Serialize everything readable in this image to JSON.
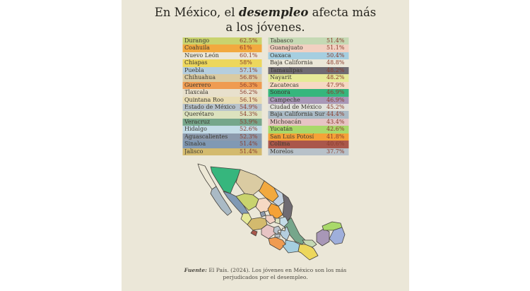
{
  "background": {
    "page": "#FFFFFF",
    "panel": "#EBE7D8"
  },
  "title": {
    "pre": "En México, el ",
    "em": "desempleo",
    "post": " afecta más",
    "line2": "a los jóvenes."
  },
  "source": {
    "label": "Fuente:",
    "rest": " El País. (2024). Los jóvenes en México son los más",
    "line2": "perjudicados por el desempleo."
  },
  "text_colors": {
    "state_name": "#3A372F",
    "value": "#8A3C2C",
    "title": "#26251F"
  },
  "table": {
    "left": [
      {
        "state": "Durango",
        "value": "62.5%",
        "color": "#C9D36E"
      },
      {
        "state": "Coahuila",
        "value": "61%",
        "color": "#F2A93F"
      },
      {
        "state": "Nuevo León",
        "value": "60.1%",
        "color": "transparent",
        "map_color": "#C3D2E2"
      },
      {
        "state": "Chiapas",
        "value": "58%",
        "color": "#EDD75C"
      },
      {
        "state": "Puebla",
        "value": "57.1%",
        "color": "#B5CEDE"
      },
      {
        "state": "Chihuahua",
        "value": "56.8%",
        "color": "#DACBA2"
      },
      {
        "state": "Guerrero",
        "value": "56.3%",
        "color": "#EF9B51"
      },
      {
        "state": "Tlaxcala",
        "value": "56.2%",
        "color": "#E8E0CC"
      },
      {
        "state": "Quintana Roo",
        "value": "56.1%",
        "color": "#E9DDB4",
        "map_color": "#9FAFDB"
      },
      {
        "state": "Estado de México",
        "value": "54.9%",
        "color": "#B8C3CC"
      },
      {
        "state": "Querétaro",
        "value": "54.3%",
        "color": "#DCE2BE"
      },
      {
        "state": "Veracruz",
        "value": "53.9%",
        "color": "#76A68B"
      },
      {
        "state": "Hidalgo",
        "value": "52.6%",
        "color": "#C4DCE7"
      },
      {
        "state": "Aguascalientes",
        "value": "52.3%",
        "color": "#8C9AAD"
      },
      {
        "state": "Sinaloa",
        "value": "51.4%",
        "color": "#8099B4"
      },
      {
        "state": "Jalisco",
        "value": "51.4%",
        "color": "#D3BA6E"
      }
    ],
    "right": [
      {
        "state": "Tabasco",
        "value": "51.4%",
        "color": "#C5D9B4"
      },
      {
        "state": "Guanajuato",
        "value": "51.1%",
        "color": "#F2D0C1"
      },
      {
        "state": "Oaxaca",
        "value": "50.4%",
        "color": "#A5CEE0"
      },
      {
        "state": "Baja California",
        "value": "48.8%",
        "color": "transparent",
        "map_color": "#EDE8D6"
      },
      {
        "state": "Tamaulipas",
        "value": "48.2%",
        "color": "#6F6B72"
      },
      {
        "state": "Nayarit",
        "value": "48.2%",
        "color": "#E6EA98"
      },
      {
        "state": "Zacatecas",
        "value": "47.9%",
        "color": "#F6D9C3"
      },
      {
        "state": "Sonora",
        "value": "46.9%",
        "color": "#36B67D"
      },
      {
        "state": "Campeche",
        "value": "46.9%",
        "color": "#A897B7"
      },
      {
        "state": "Ciudad de México",
        "value": "45.2%",
        "color": "#E1E1DB"
      },
      {
        "state": "Baja California Sur",
        "value": "44.4%",
        "color": "#AABAC5"
      },
      {
        "state": "Michoacán",
        "value": "43.4%",
        "color": "#E7C4C4"
      },
      {
        "state": "Yucatán",
        "value": "42.6%",
        "color": "#A9D96A"
      },
      {
        "state": "San Luis Potosí",
        "value": "41.8%",
        "color": "#F5A237"
      },
      {
        "state": "Colima",
        "value": "40.6%",
        "color": "#AA574B"
      },
      {
        "state": "Morelos",
        "value": "37.7%",
        "color": "#B7C1C9"
      }
    ]
  },
  "chart_data": {
    "type": "table",
    "title": "En México, el desempleo afecta más a los jóvenes.",
    "unit": "%",
    "note": "choropleth map of Mexico colored per state, matching table row colors",
    "source": "Fuente: El País. (2024). Los jóvenes en México son los más perjudicados por el desempleo.",
    "categories": [
      "Durango",
      "Coahuila",
      "Nuevo León",
      "Chiapas",
      "Puebla",
      "Chihuahua",
      "Guerrero",
      "Tlaxcala",
      "Quintana Roo",
      "Estado de México",
      "Querétaro",
      "Veracruz",
      "Hidalgo",
      "Aguascalientes",
      "Sinaloa",
      "Jalisco",
      "Tabasco",
      "Guanajuato",
      "Oaxaca",
      "Baja California",
      "Tamaulipas",
      "Nayarit",
      "Zacatecas",
      "Sonora",
      "Campeche",
      "Ciudad de México",
      "Baja California Sur",
      "Michoacán",
      "Yucatán",
      "San Luis Potosí",
      "Colima",
      "Morelos"
    ],
    "values": [
      62.5,
      61,
      60.1,
      58,
      57.1,
      56.8,
      56.3,
      56.2,
      56.1,
      54.9,
      54.3,
      53.9,
      52.6,
      52.3,
      51.4,
      51.4,
      51.4,
      51.1,
      50.4,
      48.8,
      48.2,
      48.2,
      47.9,
      46.9,
      46.9,
      45.2,
      44.4,
      43.4,
      42.6,
      41.8,
      40.6,
      37.7
    ]
  }
}
